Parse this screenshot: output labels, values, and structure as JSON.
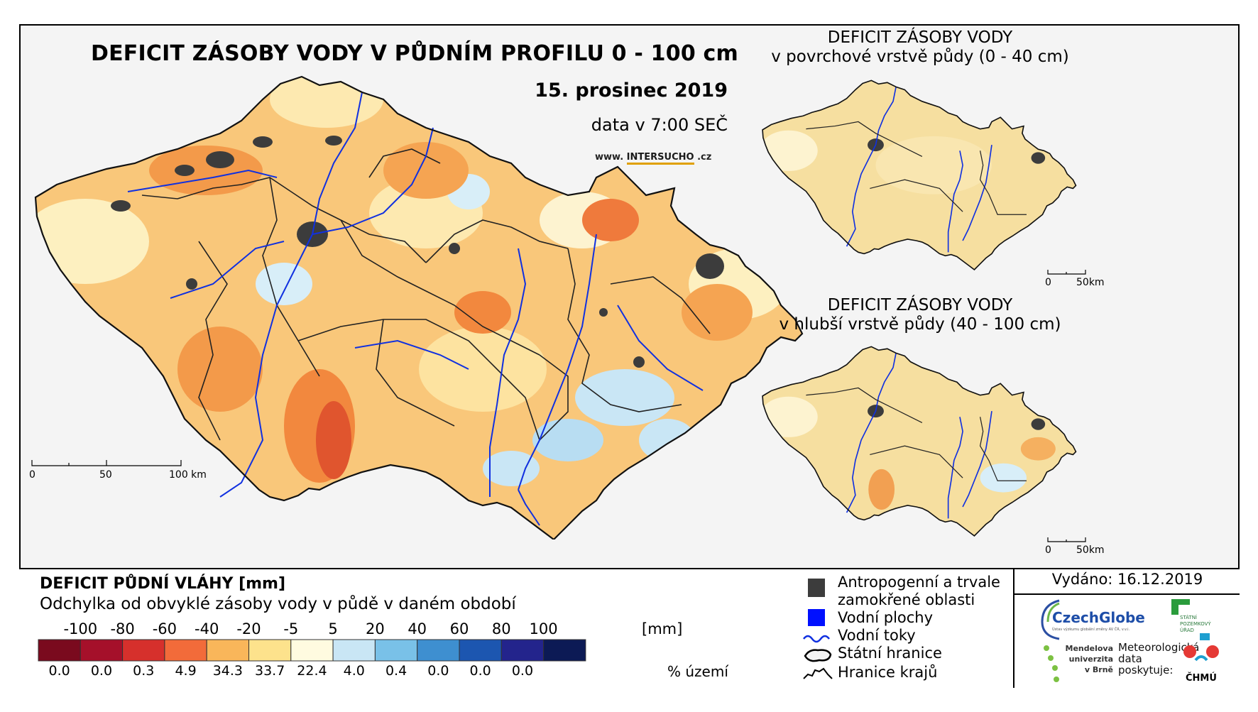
{
  "main_map": {
    "title": "DEFICIT ZÁSOBY VODY V PŮDNÍM PROFILU 0 - 100 cm",
    "date": "15. prosinec 2019",
    "data_time": "data v 7:00 SEČ",
    "website_prefix": "www.",
    "website_brand": "INTERSUCHO",
    "website_suffix": ".cz",
    "scale_labels": [
      "0",
      "50",
      "100 km"
    ]
  },
  "inset_top": {
    "title_line1": "DEFICIT ZÁSOBY VODY",
    "title_line2": "v povrchové vrstvě půdy (0 - 40 cm)",
    "scale_labels": [
      "0",
      "50km"
    ]
  },
  "inset_bottom": {
    "title_line1": "DEFICIT ZÁSOBY VODY",
    "title_line2": "v hlubší vrstvě půdy (40 - 100 cm)",
    "scale_labels": [
      "0",
      "50km"
    ]
  },
  "legend": {
    "heading": "DEFICIT PŮDNÍ VLÁHY [mm]",
    "subheading": "Odchylka od obvyklé zásoby vody v půdě v daném období",
    "ticks": [
      "-100",
      "-80",
      "-60",
      "-40",
      "-20",
      "-5",
      "5",
      "20",
      "40",
      "60",
      "80",
      "100"
    ],
    "unit": "[mm]",
    "colors": [
      "#7a0a1e",
      "#a5102a",
      "#d6302c",
      "#f26b3a",
      "#f9b65a",
      "#fde28c",
      "#fffbe0",
      "#c9e6f5",
      "#79c1e8",
      "#3e8fd0",
      "#1c56b0",
      "#23248c",
      "#0c1a55"
    ],
    "percentages": [
      "0.0",
      "0.0",
      "0.3",
      "4.9",
      "34.3",
      "33.7",
      "22.4",
      "4.0",
      "0.4",
      "0.0",
      "0.0",
      "0.0"
    ],
    "percent_label": "% území"
  },
  "symbols": {
    "anthropogenic_line1": "Antropogenní a trvale",
    "anthropogenic_line2": "zamokřené oblasti",
    "water_bodies": "Vodní plochy",
    "rivers": "Vodní toky",
    "state_border": "Státní hranice",
    "region_border": "Hranice krajů",
    "colors": {
      "anthropogenic": "#3c3c3c",
      "water": "#0010ff",
      "river": "#1030e0"
    }
  },
  "credits": {
    "issued": "Vydáno: 16.12.2019",
    "czechglobe": "CzechGlobe",
    "czechglobe_sub": "Ústav výzkumu globální změny AV ČR, v.v.i.",
    "spu_line1": "STÁTNÍ",
    "spu_line2": "POZEMKOVÝ",
    "spu_line3": "ÚŘAD",
    "mendelu_line1": "Mendelova",
    "mendelu_line2": "univerzita",
    "mendelu_line3": "v Brně",
    "meteo_line1": "Meteorologická",
    "meteo_line2": "data",
    "meteo_line3": "poskytuje:",
    "chmu": "ČHMÚ"
  }
}
